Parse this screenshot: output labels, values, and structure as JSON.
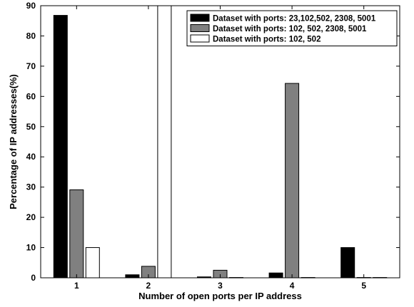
{
  "chart_data": {
    "type": "bar",
    "title": "",
    "xlabel": "Number of open ports per IP address",
    "ylabel": "Percentage of IP addresses(%)",
    "categories": [
      "1",
      "2",
      "3",
      "4",
      "5"
    ],
    "ylim": [
      0,
      90
    ],
    "yticks": [
      "0",
      "10",
      "20",
      "30",
      "40",
      "50",
      "60",
      "70",
      "80",
      "90"
    ],
    "grid": false,
    "legend_position": "top-right",
    "series": [
      {
        "name": "Dataset with ports: 23,102,502, 2308, 5001",
        "color": "#000000",
        "values": [
          86.8,
          1.0,
          0.3,
          1.6,
          10.0
        ]
      },
      {
        "name": "Dataset with ports: 102, 502, 2308, 5001",
        "color": "#808080",
        "values": [
          29.1,
          3.8,
          2.5,
          64.3,
          0.1
        ]
      },
      {
        "name": "Dataset with ports: 102, 502",
        "color": "#ffffff",
        "values": [
          10.0,
          90.0,
          0.1,
          0.1,
          0.1
        ]
      }
    ]
  }
}
